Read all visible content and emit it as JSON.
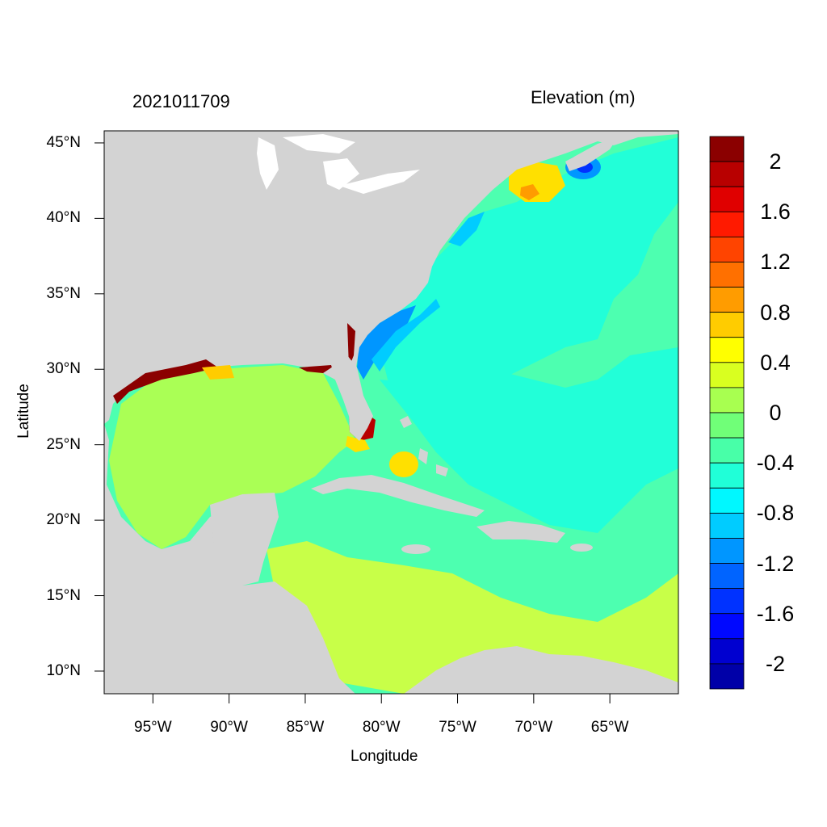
{
  "figure": {
    "left_title": "2021011709",
    "right_title": "Elevation (m)",
    "xlabel": "Longitude",
    "ylabel": "Latitude"
  },
  "map": {
    "lon_range": [
      -98.2,
      -60.5
    ],
    "lat_range": [
      8.5,
      45.8
    ],
    "x_ticks": [
      {
        "lon": -95,
        "label": "95°W"
      },
      {
        "lon": -90,
        "label": "90°W"
      },
      {
        "lon": -85,
        "label": "85°W"
      },
      {
        "lon": -80,
        "label": "80°W"
      },
      {
        "lon": -75,
        "label": "75°W"
      },
      {
        "lon": -70,
        "label": "70°W"
      },
      {
        "lon": -65,
        "label": "65°W"
      }
    ],
    "y_ticks": [
      {
        "lat": 45,
        "label": "45°N"
      },
      {
        "lat": 40,
        "label": "40°N"
      },
      {
        "lat": 35,
        "label": "35°N"
      },
      {
        "lat": 30,
        "label": "30°N"
      },
      {
        "lat": 25,
        "label": "25°N"
      },
      {
        "lat": 20,
        "label": "20°N"
      },
      {
        "lat": 15,
        "label": "15°N"
      },
      {
        "lat": 10,
        "label": "10°N"
      }
    ],
    "land_color": "#d3d3d3",
    "lake_color": "#ffffff"
  },
  "colorbar": {
    "colors": [
      "#8b0000",
      "#b80000",
      "#e00000",
      "#ff1a00",
      "#ff4400",
      "#ff7000",
      "#ff9c00",
      "#ffcc00",
      "#ffff00",
      "#d9ff20",
      "#a8ff50",
      "#70ff78",
      "#48ffa8",
      "#20ffd8",
      "#00f8ff",
      "#00ccff",
      "#0096ff",
      "#0064ff",
      "#0032ff",
      "#0008ff",
      "#0000d0",
      "#0000a8"
    ],
    "labels": [
      "2",
      "1.6",
      "1.2",
      "0.8",
      "0.4",
      "0",
      "-0.4",
      "-0.8",
      "-1.2",
      "-1.6",
      "-2"
    ]
  }
}
